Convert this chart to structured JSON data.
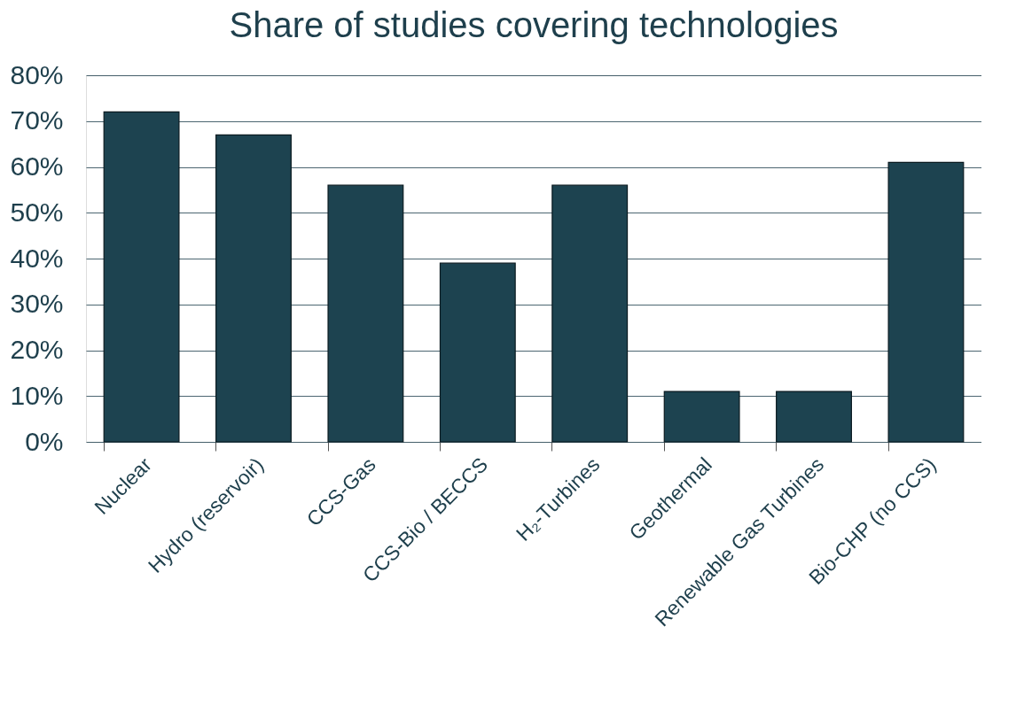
{
  "chart_data": {
    "type": "bar",
    "title": "Share of studies covering technologies",
    "categories": [
      "Nuclear",
      "Hydro (reservoir)",
      "CCS-Gas",
      "CCS-Bio / BECCS",
      "H₂-Turbines",
      "Geothermal",
      "Renewable Gas Turbines",
      "Bio-CHP (no CCS)"
    ],
    "values": [
      72,
      67,
      56,
      39,
      56,
      11,
      11,
      61
    ],
    "color": "#1d4350",
    "ylim": [
      0,
      80
    ],
    "yticks": [
      {
        "value": 0,
        "label": "0%"
      },
      {
        "value": 10,
        "label": "10%"
      },
      {
        "value": 20,
        "label": "20%"
      },
      {
        "value": 30,
        "label": "30%"
      },
      {
        "value": 40,
        "label": "40%"
      },
      {
        "value": 50,
        "label": "50%"
      },
      {
        "value": 60,
        "label": "60%"
      },
      {
        "value": 70,
        "label": "70%"
      },
      {
        "value": 80,
        "label": "80%"
      }
    ],
    "grid": "y"
  }
}
